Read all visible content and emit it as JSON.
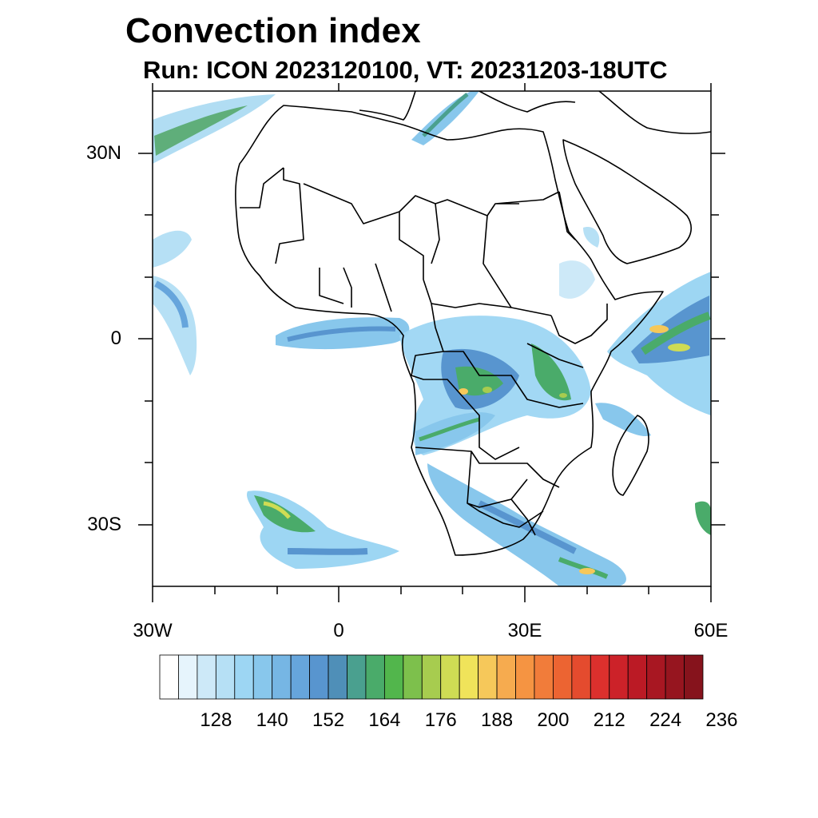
{
  "title": "Convection index",
  "subtitle": "Run: ICON 2023120100,  VT: 20231203-18UTC",
  "map": {
    "lon_range": [
      -30,
      60
    ],
    "lat_range": [
      -40,
      40
    ],
    "lat_labels": [
      "30N",
      "0",
      "30S"
    ],
    "lon_labels": [
      "30W",
      "0",
      "30E",
      "60E"
    ]
  },
  "colorbar": {
    "labels": [
      "128",
      "140",
      "152",
      "164",
      "176",
      "188",
      "200",
      "212",
      "224",
      "236"
    ],
    "colors": [
      "#ffffff",
      "#e6f4fc",
      "#cde9f8",
      "#b6e0f5",
      "#9dd6f3",
      "#88c7ec",
      "#76b6e4",
      "#66a5dc",
      "#5895cf",
      "#4f8fb8",
      "#4aa08f",
      "#4aab6a",
      "#52b64c",
      "#7dc04c",
      "#a7cc4f",
      "#cfdc54",
      "#f0e35a",
      "#f6c85a",
      "#f6ab4f",
      "#f59442",
      "#f17c3a",
      "#ec6432",
      "#e44b2e",
      "#dc302d",
      "#cc2229",
      "#bb1a25",
      "#a81722",
      "#96151f",
      "#86131c"
    ]
  }
}
